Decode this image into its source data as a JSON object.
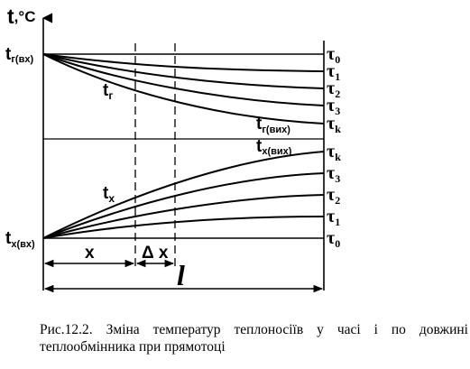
{
  "diagram": {
    "y_axis_label": {
      "base": "t",
      "unit": ",°C"
    },
    "hot_inlet": {
      "base": "t",
      "sub": "г(вх)"
    },
    "hot_curve": {
      "base": "t",
      "sub": "г"
    },
    "hot_outlet": {
      "base": "t",
      "sub": "г(вих)"
    },
    "cold_inlet": {
      "base": "t",
      "sub": "х(вх)"
    },
    "cold_curve": {
      "base": "t",
      "sub": "х"
    },
    "cold_outlet": {
      "base": "t",
      "sub": "х(вих)"
    },
    "hot_taus": [
      {
        "base": "τ",
        "sub": "0"
      },
      {
        "base": "τ",
        "sub": "1"
      },
      {
        "base": "τ",
        "sub": "2"
      },
      {
        "base": "τ",
        "sub": "3"
      },
      {
        "base": "τ",
        "sub": "k"
      }
    ],
    "cold_taus": [
      {
        "base": "τ",
        "sub": "k"
      },
      {
        "base": "τ",
        "sub": "3"
      },
      {
        "base": "τ",
        "sub": "2"
      },
      {
        "base": "τ",
        "sub": "1"
      },
      {
        "base": "τ",
        "sub": "0"
      }
    ],
    "x_label": "x",
    "dx_label": "Δ x",
    "length_label": "l"
  },
  "caption": "Рис.12.2. Зміна температур теплоносіїв у часі і по довжині теплообмінника при прямотоці"
}
